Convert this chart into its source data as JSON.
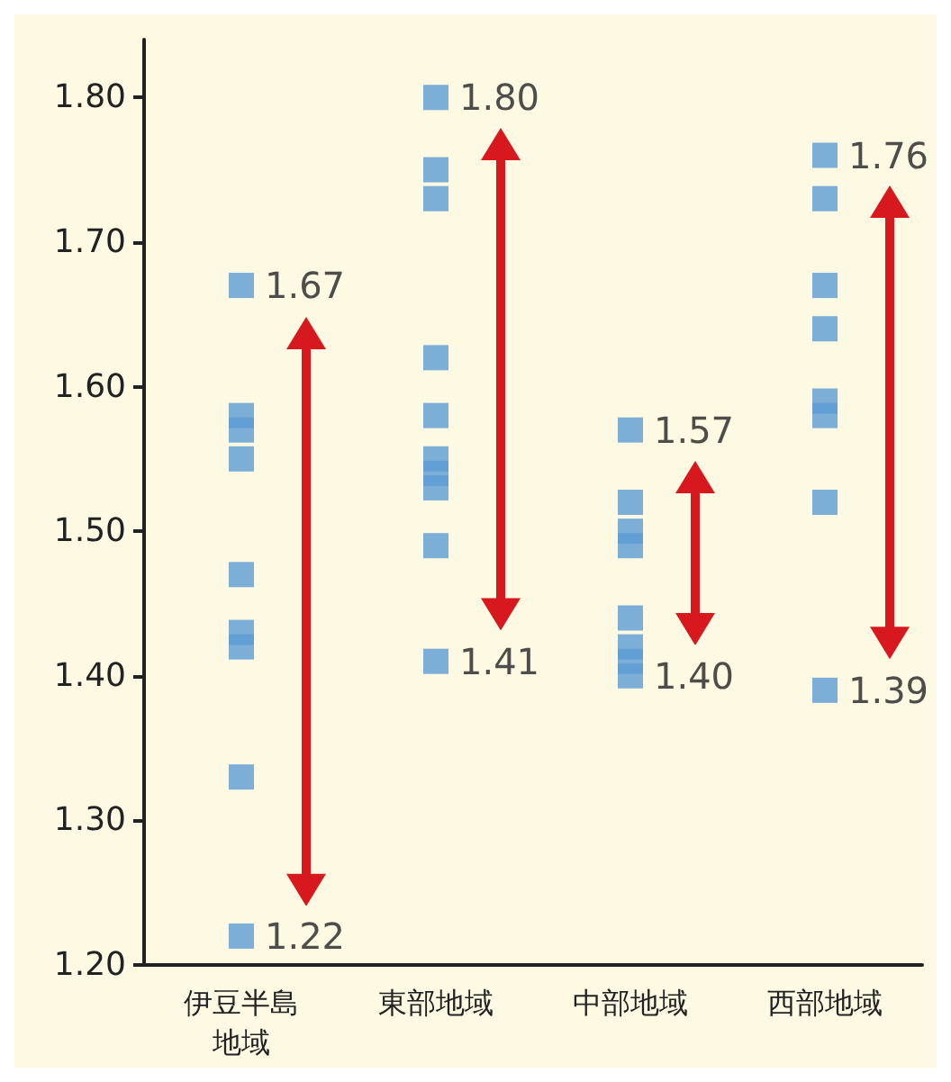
{
  "chart_data": {
    "type": "scatter",
    "categories": [
      "伊豆半島地域",
      "東部地域",
      "中部地域",
      "西部地域"
    ],
    "ylim": [
      1.2,
      1.84
    ],
    "yticks": [
      {
        "value": 1.2,
        "label": "1.20"
      },
      {
        "value": 1.3,
        "label": "1.30"
      },
      {
        "value": 1.4,
        "label": "1.40"
      },
      {
        "value": 1.5,
        "label": "1.50"
      },
      {
        "value": 1.6,
        "label": "1.60"
      },
      {
        "value": 1.7,
        "label": "1.70"
      },
      {
        "value": 1.8,
        "label": "1.80"
      }
    ],
    "marker": "square",
    "grid": false,
    "series": [
      {
        "color": "#5b9bd5",
        "x": [
          "伊豆半島地域",
          "伊豆半島地域",
          "伊豆半島地域",
          "伊豆半島地域",
          "伊豆半島地域",
          "伊豆半島地域",
          "伊豆半島地域",
          "伊豆半島地域",
          "伊豆半島地域",
          "東部地域",
          "東部地域",
          "東部地域",
          "東部地域",
          "東部地域",
          "東部地域",
          "東部地域",
          "東部地域",
          "東部地域",
          "東部地域",
          "中部地域",
          "中部地域",
          "中部地域",
          "中部地域",
          "中部地域",
          "中部地域",
          "中部地域",
          "中部地域",
          "西部地域",
          "西部地域",
          "西部地域",
          "西部地域",
          "西部地域",
          "西部地域",
          "西部地域",
          "西部地域"
        ],
        "values": [
          1.67,
          1.58,
          1.57,
          1.55,
          1.47,
          1.43,
          1.42,
          1.33,
          1.22,
          1.8,
          1.75,
          1.73,
          1.62,
          1.58,
          1.55,
          1.54,
          1.53,
          1.49,
          1.41,
          1.57,
          1.52,
          1.5,
          1.49,
          1.44,
          1.42,
          1.41,
          1.4,
          1.76,
          1.73,
          1.67,
          1.64,
          1.59,
          1.58,
          1.52,
          1.39
        ],
        "value_labels": [
          "1.67",
          null,
          null,
          null,
          null,
          null,
          null,
          null,
          "1.22",
          "1.80",
          null,
          null,
          null,
          null,
          null,
          null,
          null,
          null,
          "1.41",
          "1.57",
          null,
          null,
          null,
          null,
          null,
          null,
          "1.40",
          "1.76",
          null,
          null,
          null,
          null,
          null,
          null,
          "1.39"
        ]
      }
    ]
  }
}
